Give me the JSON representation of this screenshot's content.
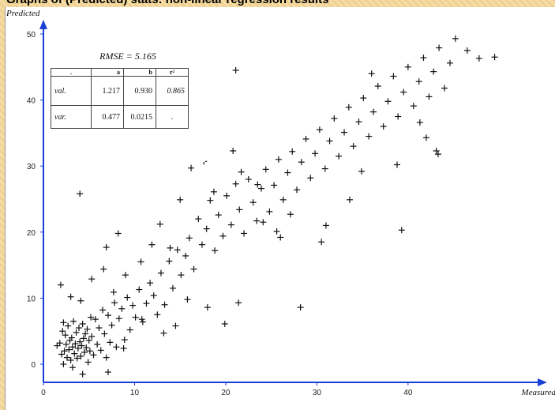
{
  "header": {
    "title": "Graphs of (Predicted) stats: non-linear regression results"
  },
  "stats": {
    "rmse": "RMSE = 5.165",
    "columns": [
      ".",
      "a",
      "b",
      "r²"
    ],
    "rows": [
      {
        "label": "val.",
        "a": "1.217",
        "b": "0.930",
        "r2": "0.865"
      },
      {
        "label": "var.",
        "a": "0.477",
        "b": "0.0215",
        "r2": "."
      }
    ]
  },
  "chart_data": {
    "type": "scatter",
    "title": "",
    "xlabel": "Measured",
    "ylabel": "Predicted",
    "xlim": [
      0,
      50
    ],
    "ylim": [
      -2,
      52
    ],
    "x_ticks": [
      0,
      10,
      20,
      30,
      40
    ],
    "y_ticks": [
      0,
      10,
      20,
      30,
      40,
      50
    ],
    "grid": false,
    "marker": "+",
    "colors": {
      "axis": "#1a3fd6",
      "marker": "#111111"
    },
    "points": [
      [
        1.5,
        2.8
      ],
      [
        1.8,
        3.2
      ],
      [
        2.0,
        1.5
      ],
      [
        2.1,
        5.0
      ],
      [
        2.2,
        6.3
      ],
      [
        2.3,
        2.0
      ],
      [
        2.4,
        4.4
      ],
      [
        2.5,
        3.0
      ],
      [
        2.6,
        1.0
      ],
      [
        2.7,
        5.8
      ],
      [
        2.8,
        2.2
      ],
      [
        2.9,
        3.6
      ],
      [
        3.0,
        0.6
      ],
      [
        3.1,
        4.0
      ],
      [
        3.2,
        2.6
      ],
      [
        3.3,
        6.5
      ],
      [
        3.4,
        1.6
      ],
      [
        3.5,
        3.1
      ],
      [
        3.6,
        4.8
      ],
      [
        3.7,
        0.9
      ],
      [
        3.8,
        2.4
      ],
      [
        3.9,
        5.5
      ],
      [
        4.0,
        3.4
      ],
      [
        4.1,
        1.2
      ],
      [
        4.2,
        2.8
      ],
      [
        4.3,
        6.1
      ],
      [
        4.4,
        3.9
      ],
      [
        4.5,
        1.8
      ],
      [
        4.6,
        4.6
      ],
      [
        4.7,
        2.5
      ],
      [
        4.8,
        5.3
      ],
      [
        4.9,
        0.3
      ],
      [
        5.0,
        3.6
      ],
      [
        5.1,
        2.0
      ],
      [
        5.2,
        7.1
      ],
      [
        5.3,
        4.2
      ],
      [
        5.5,
        1.4
      ],
      [
        5.7,
        6.8
      ],
      [
        5.9,
        3.0
      ],
      [
        6.1,
        5.5
      ],
      [
        6.3,
        2.1
      ],
      [
        6.5,
        8.2
      ],
      [
        6.7,
        4.6
      ],
      [
        6.9,
        1.0
      ],
      [
        7.1,
        7.4
      ],
      [
        7.3,
        3.3
      ],
      [
        7.5,
        5.9
      ],
      [
        7.8,
        9.3
      ],
      [
        8.0,
        2.6
      ],
      [
        8.3,
        6.9
      ],
      [
        8.6,
        8.4
      ],
      [
        8.9,
        3.7
      ],
      [
        9.2,
        10.1
      ],
      [
        9.5,
        5.2
      ],
      [
        9.8,
        8.9
      ],
      [
        10.1,
        7.1
      ],
      [
        10.5,
        11.3
      ],
      [
        10.9,
        6.4
      ],
      [
        11.3,
        9.2
      ],
      [
        11.7,
        12.3
      ],
      [
        12.1,
        10.4
      ],
      [
        12.5,
        7.5
      ],
      [
        12.9,
        13.8
      ],
      [
        13.3,
        9.0
      ],
      [
        13.8,
        15.6
      ],
      [
        14.2,
        11.5
      ],
      [
        14.7,
        17.3
      ],
      [
        15.1,
        13.5
      ],
      [
        15.6,
        16.4
      ],
      [
        16.0,
        19.1
      ],
      [
        16.5,
        14.4
      ],
      [
        17.0,
        22.0
      ],
      [
        17.4,
        18.1
      ],
      [
        17.9,
        20.5
      ],
      [
        18.3,
        24.8
      ],
      [
        18.8,
        17.2
      ],
      [
        19.2,
        22.6
      ],
      [
        19.7,
        19.4
      ],
      [
        20.1,
        25.5
      ],
      [
        20.6,
        21.1
      ],
      [
        21.1,
        27.3
      ],
      [
        21.5,
        23.4
      ],
      [
        22.0,
        19.8
      ],
      [
        22.5,
        28.0
      ],
      [
        23.0,
        24.5
      ],
      [
        23.4,
        21.7
      ],
      [
        23.9,
        26.6
      ],
      [
        24.4,
        29.5
      ],
      [
        24.8,
        23.1
      ],
      [
        25.3,
        27.1
      ],
      [
        25.8,
        31.0
      ],
      [
        26.3,
        24.9
      ],
      [
        26.8,
        29.0
      ],
      [
        27.3,
        32.2
      ],
      [
        27.8,
        26.4
      ],
      [
        28.3,
        30.6
      ],
      [
        28.8,
        34.1
      ],
      [
        29.3,
        28.2
      ],
      [
        29.8,
        31.9
      ],
      [
        30.3,
        35.5
      ],
      [
        30.9,
        29.6
      ],
      [
        31.4,
        33.8
      ],
      [
        31.9,
        37.2
      ],
      [
        32.4,
        31.5
      ],
      [
        33.0,
        35.1
      ],
      [
        33.5,
        38.9
      ],
      [
        34.0,
        33.0
      ],
      [
        34.6,
        36.7
      ],
      [
        35.1,
        40.3
      ],
      [
        35.7,
        34.5
      ],
      [
        36.2,
        38.2
      ],
      [
        36.7,
        42.1
      ],
      [
        37.3,
        36.0
      ],
      [
        37.8,
        39.8
      ],
      [
        38.4,
        43.6
      ],
      [
        38.9,
        37.5
      ],
      [
        39.5,
        41.2
      ],
      [
        40.0,
        45.0
      ],
      [
        40.6,
        39.1
      ],
      [
        41.2,
        42.8
      ],
      [
        41.7,
        46.4
      ],
      [
        42.3,
        40.5
      ],
      [
        42.8,
        44.3
      ],
      [
        43.4,
        47.9
      ],
      [
        44.0,
        41.8
      ],
      [
        44.6,
        45.6
      ],
      [
        45.2,
        49.3
      ],
      [
        46.5,
        47.5
      ],
      [
        47.8,
        46.3
      ],
      [
        49.5,
        46.5
      ],
      [
        1.9,
        12.0
      ],
      [
        3.0,
        10.2
      ],
      [
        4.1,
        9.6
      ],
      [
        5.3,
        12.9
      ],
      [
        6.6,
        14.4
      ],
      [
        7.7,
        10.9
      ],
      [
        4.0,
        25.8
      ],
      [
        6.9,
        17.7
      ],
      [
        8.2,
        19.8
      ],
      [
        9.0,
        13.5
      ],
      [
        10.7,
        15.5
      ],
      [
        11.9,
        18.1
      ],
      [
        12.8,
        21.2
      ],
      [
        13.9,
        17.6
      ],
      [
        15.0,
        24.9
      ],
      [
        16.2,
        29.7
      ],
      [
        17.6,
        30.7
      ],
      [
        18.7,
        26.1
      ],
      [
        20.8,
        32.3
      ],
      [
        21.1,
        44.5
      ],
      [
        21.7,
        29.1
      ],
      [
        23.5,
        27.2
      ],
      [
        24.1,
        21.5
      ],
      [
        25.6,
        20.1
      ],
      [
        26.0,
        19.2
      ],
      [
        27.1,
        22.7
      ],
      [
        28.2,
        8.6
      ],
      [
        30.5,
        18.5
      ],
      [
        31.0,
        21.0
      ],
      [
        33.6,
        24.9
      ],
      [
        34.9,
        29.2
      ],
      [
        36.0,
        44.0
      ],
      [
        38.8,
        30.2
      ],
      [
        39.3,
        20.3
      ],
      [
        41.3,
        36.6
      ],
      [
        42.0,
        34.3
      ],
      [
        43.3,
        31.8
      ],
      [
        43.1,
        32.3
      ],
      [
        18.0,
        8.6
      ],
      [
        19.9,
        6.1
      ],
      [
        21.4,
        9.3
      ],
      [
        15.8,
        9.8
      ],
      [
        14.5,
        5.8
      ],
      [
        13.2,
        4.7
      ],
      [
        10.8,
        6.8
      ],
      [
        8.8,
        2.4
      ],
      [
        7.1,
        -1.2
      ],
      [
        4.3,
        -1.5
      ],
      [
        3.2,
        -0.5
      ],
      [
        2.2,
        0.0
      ]
    ]
  }
}
